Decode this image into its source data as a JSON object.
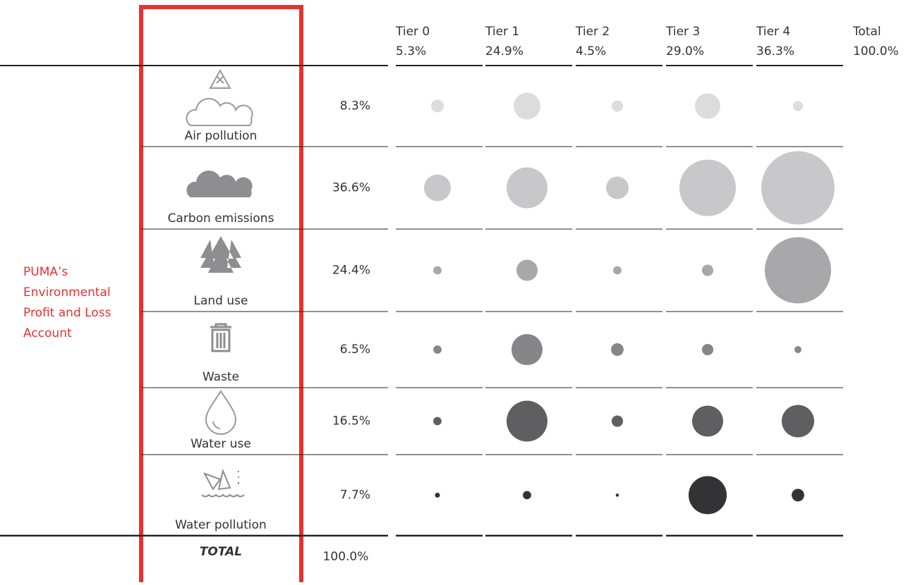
{
  "side_label": [
    "PUMA’s",
    "Environmental",
    "Profit and Loss",
    "Account"
  ],
  "tiers": [
    {
      "name": "Tier 0",
      "share": "5.3%"
    },
    {
      "name": "Tier 1",
      "share": "24.9%"
    },
    {
      "name": "Tier 2",
      "share": "4.5%"
    },
    {
      "name": "Tier 3",
      "share": "29.0%"
    },
    {
      "name": "Tier 4",
      "share": "36.3%"
    },
    {
      "name": "Total",
      "share": "100.0%"
    }
  ],
  "rows": [
    {
      "label": "Air pollution",
      "share": "8.3%",
      "color": "#dcdcdd",
      "bubbles": [
        3.2,
        14.4,
        2.6,
        13,
        2
      ]
    },
    {
      "label": "Carbon emissions",
      "share": "36.6%",
      "color": "#c8c8ca",
      "bubbles": [
        14.4,
        33.6,
        10.2,
        64,
        108
      ]
    },
    {
      "label": "Land use",
      "share": "24.4%",
      "color": "#a8a8aa",
      "bubbles": [
        1.4,
        9,
        1.4,
        2.6,
        88.4
      ]
    },
    {
      "label": "Waste",
      "share": "6.5%",
      "color": "#868688",
      "bubbles": [
        1.4,
        19.4,
        3.2,
        2.6,
        1
      ]
    },
    {
      "label": "Water use",
      "share": "16.5%",
      "color": "#5f5f61",
      "bubbles": [
        1.4,
        33.6,
        2.6,
        19.4,
        21.2
      ]
    },
    {
      "label": "Water pollution",
      "share": "7.7%",
      "color": "#333335",
      "bubbles": [
        0.5,
        1.4,
        0.2,
        29.2,
        3.2
      ]
    }
  ],
  "total": {
    "label": "TOTAL",
    "share": "100.0%"
  }
}
